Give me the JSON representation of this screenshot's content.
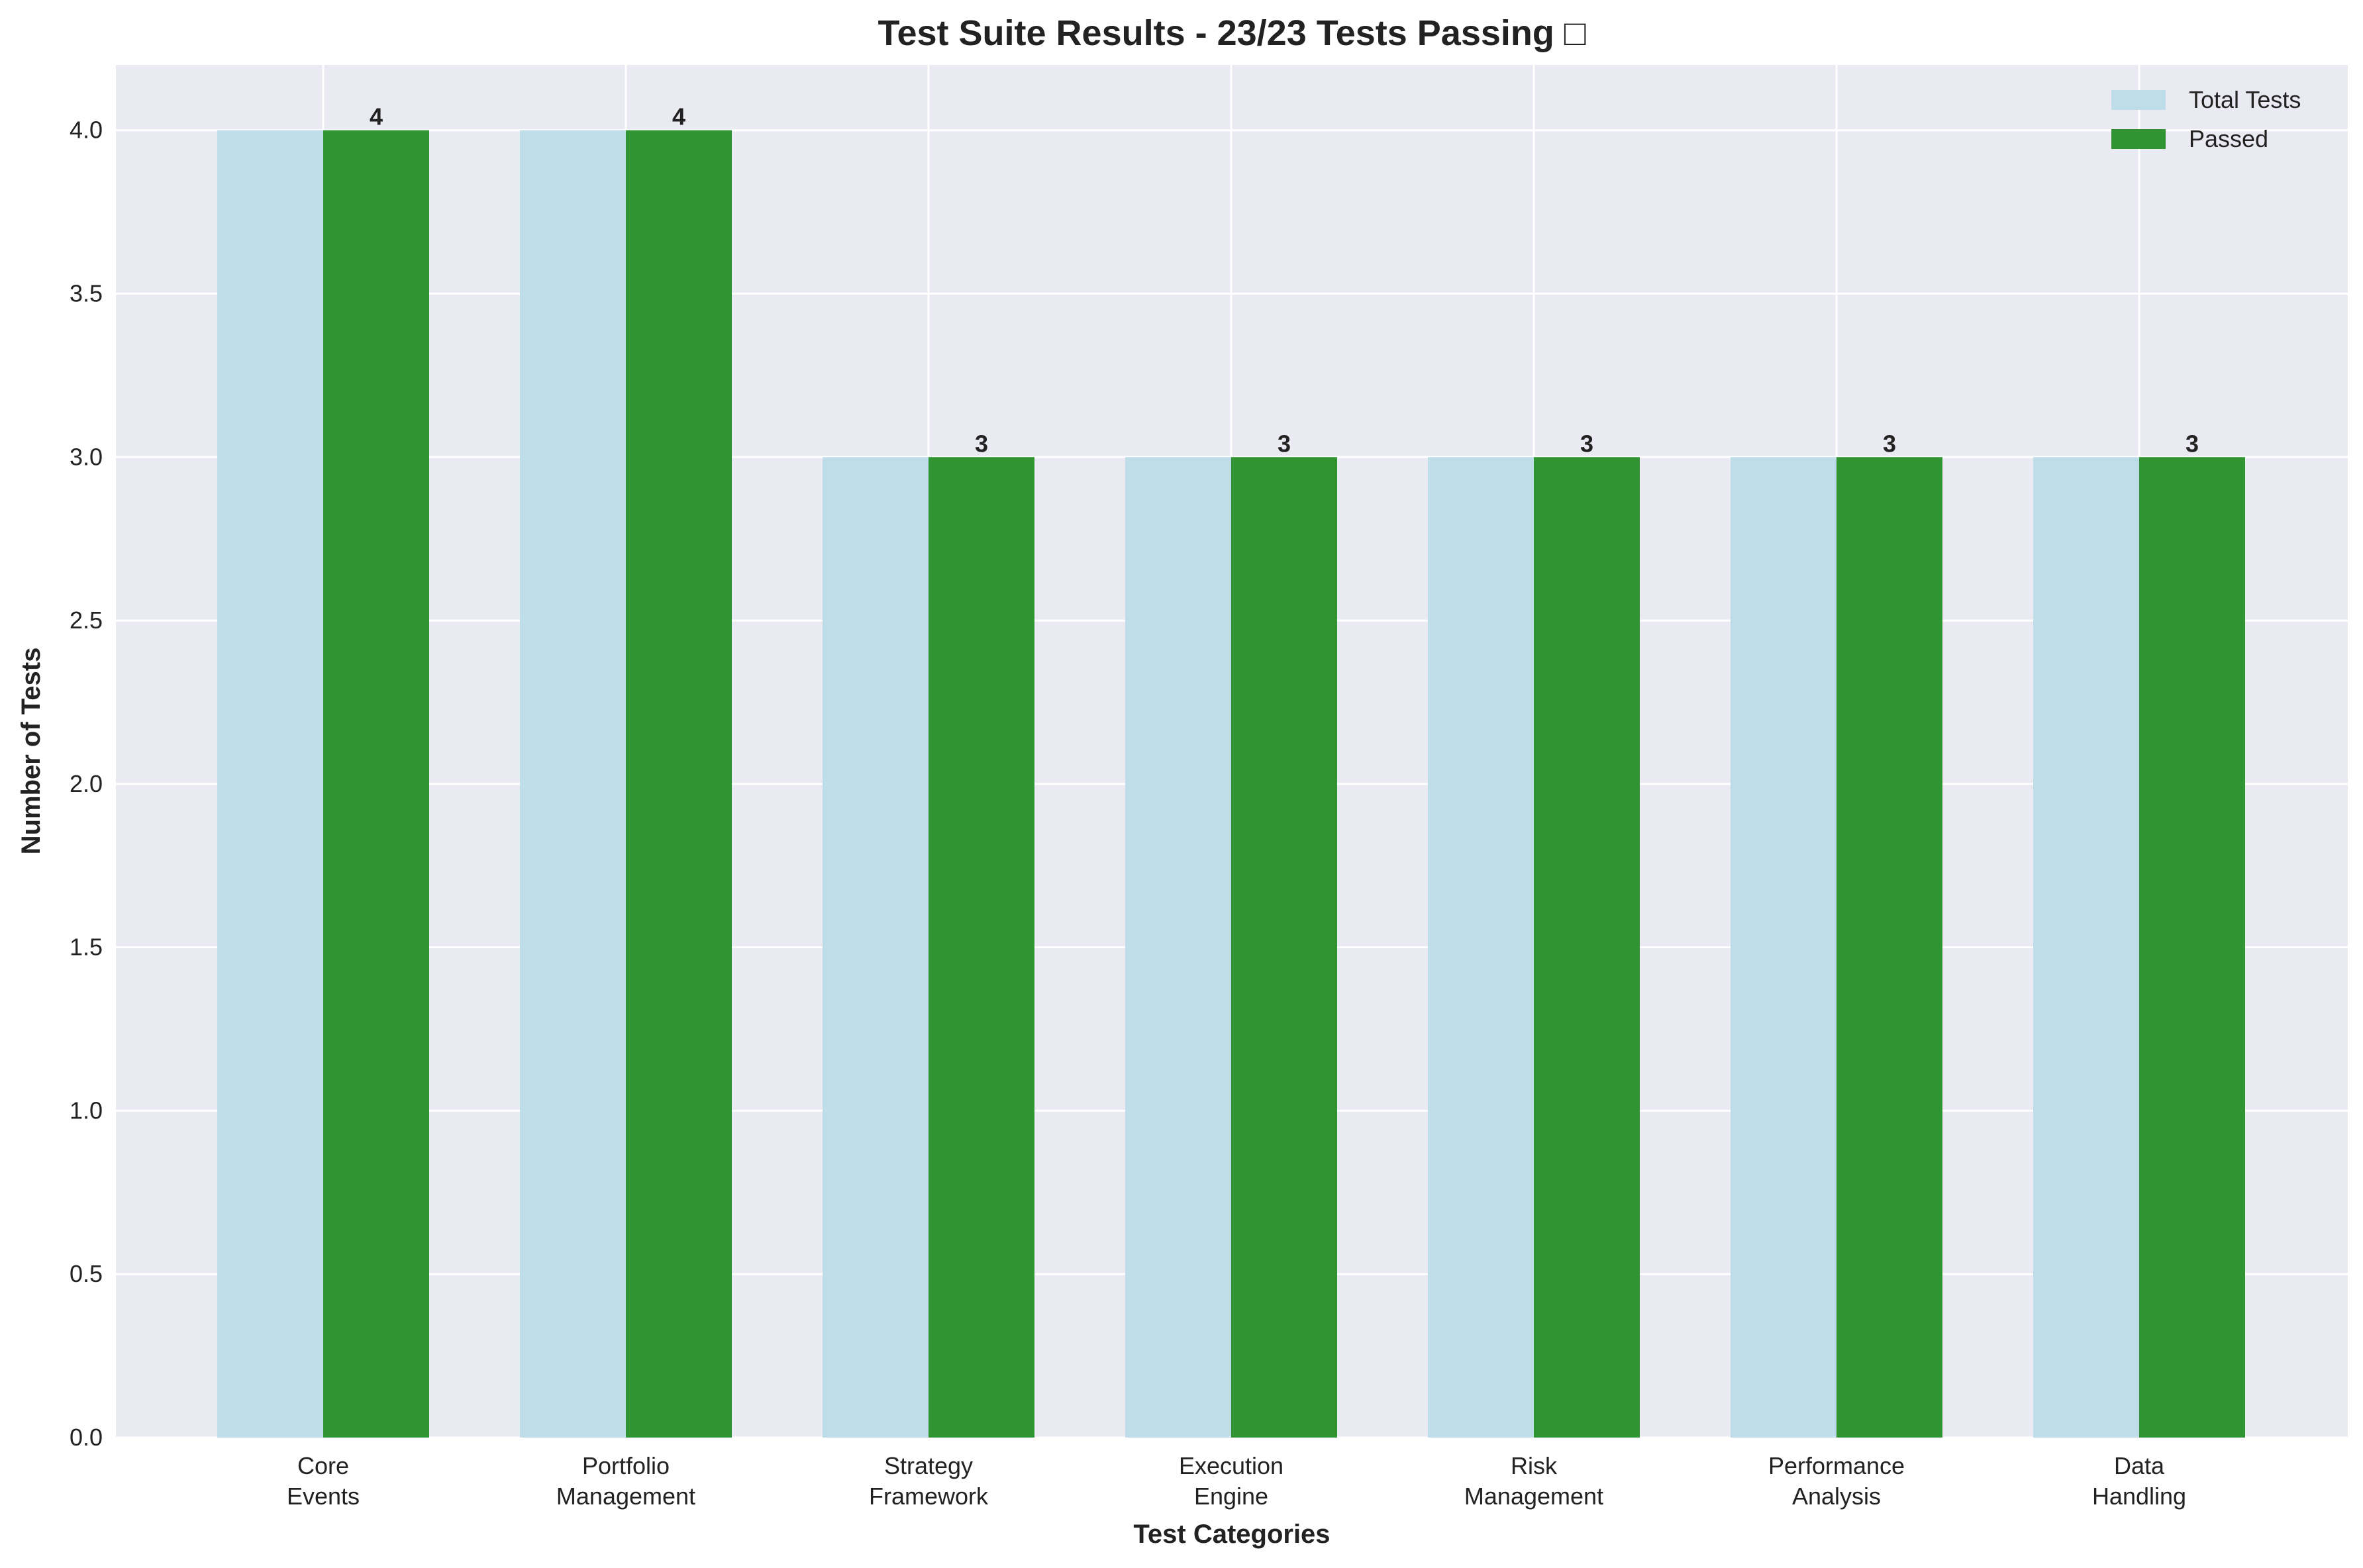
{
  "chart_data": {
    "type": "bar",
    "title": "Test Suite Results - 23/23 Tests Passing □",
    "xlabel": "Test Categories",
    "ylabel": "Number of Tests",
    "categories": [
      [
        "Core",
        "Events"
      ],
      [
        "Portfolio",
        "Management"
      ],
      [
        "Strategy",
        "Framework"
      ],
      [
        "Execution",
        "Engine"
      ],
      [
        "Risk",
        "Management"
      ],
      [
        "Performance",
        "Analysis"
      ],
      [
        "Data",
        "Handling"
      ]
    ],
    "series": [
      {
        "name": "Total Tests",
        "values": [
          4,
          4,
          3,
          3,
          3,
          3,
          3
        ],
        "color": "#bfdde8"
      },
      {
        "name": "Passed",
        "values": [
          4,
          4,
          3,
          3,
          3,
          3,
          3
        ],
        "color": "#2f9431"
      }
    ],
    "ylim": [
      0,
      4.2
    ],
    "yticks": [
      "0.0",
      "0.5",
      "1.0",
      "1.5",
      "2.0",
      "2.5",
      "3.0",
      "3.5",
      "4.0"
    ],
    "data_labels": [
      "4",
      "4",
      "3",
      "3",
      "3",
      "3",
      "3"
    ],
    "grid": true,
    "legend_position": "top-right",
    "colors": {
      "plot_background": "#eaeaf2",
      "grid": "#ffffff"
    }
  }
}
